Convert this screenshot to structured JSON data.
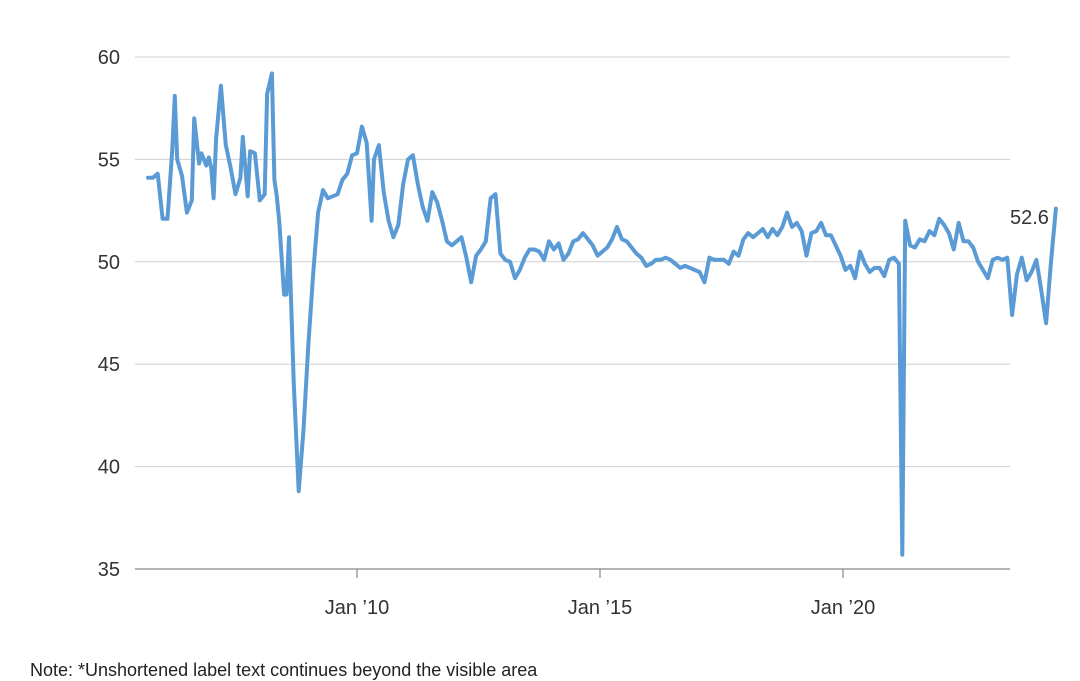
{
  "colors": {
    "line": "#5b9bd5",
    "grid": "#d0d0d0",
    "text": "#333333"
  },
  "note": "Note: *Unshortened label text continues beyond the visible area",
  "chart_data": {
    "type": "line",
    "title": "",
    "xlabel": "",
    "ylabel": "",
    "ylim": [
      35,
      60
    ],
    "xlim": [
      2005.5,
      2023.4
    ],
    "grid": "horizontal",
    "y_ticks": [
      35,
      40,
      45,
      50,
      55,
      60
    ],
    "y_tick_labels": [
      "35",
      "40",
      "45",
      "50",
      "55",
      "60"
    ],
    "x_ticks": [
      2010.0,
      2015.0,
      2020.0
    ],
    "x_tick_labels": [
      "Jan ’10",
      "Jan ’15",
      "Jan ’20"
    ],
    "end_label": "52.6",
    "series": [
      {
        "name": "",
        "color": "#5b9bd5",
        "points": [
          [
            2005.7,
            54.1
          ],
          [
            2005.8,
            54.1
          ],
          [
            2005.9,
            54.3
          ],
          [
            2006.0,
            52.1
          ],
          [
            2006.1,
            52.1
          ],
          [
            2006.2,
            55.5
          ],
          [
            2006.25,
            58.1
          ],
          [
            2006.3,
            55.0
          ],
          [
            2006.4,
            54.2
          ],
          [
            2006.5,
            52.4
          ],
          [
            2006.6,
            53.0
          ],
          [
            2006.65,
            57.0
          ],
          [
            2006.75,
            54.8
          ],
          [
            2006.8,
            55.3
          ],
          [
            2006.9,
            54.7
          ],
          [
            2006.95,
            55.1
          ],
          [
            2007.0,
            54.6
          ],
          [
            2007.05,
            53.1
          ],
          [
            2007.1,
            56.0
          ],
          [
            2007.2,
            58.6
          ],
          [
            2007.3,
            55.7
          ],
          [
            2007.4,
            54.6
          ],
          [
            2007.5,
            53.3
          ],
          [
            2007.6,
            54.1
          ],
          [
            2007.65,
            56.1
          ],
          [
            2007.75,
            53.2
          ],
          [
            2007.8,
            55.4
          ],
          [
            2007.9,
            55.3
          ],
          [
            2008.0,
            53.0
          ],
          [
            2008.1,
            53.3
          ],
          [
            2008.15,
            58.2
          ],
          [
            2008.25,
            59.2
          ],
          [
            2008.3,
            54.0
          ],
          [
            2008.35,
            53.2
          ],
          [
            2008.4,
            52.0
          ],
          [
            2008.5,
            48.4
          ],
          [
            2008.55,
            48.4
          ],
          [
            2008.6,
            51.2
          ],
          [
            2008.7,
            44.0
          ],
          [
            2008.8,
            38.8
          ],
          [
            2008.9,
            41.8
          ],
          [
            2009.0,
            46.0
          ],
          [
            2009.1,
            49.5
          ],
          [
            2009.2,
            52.4
          ],
          [
            2009.3,
            53.5
          ],
          [
            2009.4,
            53.1
          ],
          [
            2009.5,
            53.2
          ],
          [
            2009.6,
            53.3
          ],
          [
            2009.7,
            54.0
          ],
          [
            2009.8,
            54.3
          ],
          [
            2009.9,
            55.2
          ],
          [
            2010.0,
            55.3
          ],
          [
            2010.1,
            56.6
          ],
          [
            2010.2,
            55.8
          ],
          [
            2010.3,
            52.0
          ],
          [
            2010.35,
            55.0
          ],
          [
            2010.45,
            55.7
          ],
          [
            2010.55,
            53.4
          ],
          [
            2010.65,
            52.0
          ],
          [
            2010.75,
            51.2
          ],
          [
            2010.85,
            51.8
          ],
          [
            2010.95,
            53.8
          ],
          [
            2011.05,
            55.0
          ],
          [
            2011.15,
            55.2
          ],
          [
            2011.25,
            53.8
          ],
          [
            2011.35,
            52.7
          ],
          [
            2011.45,
            52.0
          ],
          [
            2011.55,
            53.4
          ],
          [
            2011.65,
            52.9
          ],
          [
            2011.75,
            52.0
          ],
          [
            2011.85,
            51.0
          ],
          [
            2011.95,
            50.8
          ],
          [
            2012.05,
            51.0
          ],
          [
            2012.15,
            51.2
          ],
          [
            2012.25,
            50.2
          ],
          [
            2012.35,
            49.0
          ],
          [
            2012.45,
            50.3
          ],
          [
            2012.55,
            50.6
          ],
          [
            2012.65,
            51.0
          ],
          [
            2012.75,
            53.1
          ],
          [
            2012.85,
            53.3
          ],
          [
            2012.95,
            50.4
          ],
          [
            2013.05,
            50.1
          ],
          [
            2013.15,
            50.0
          ],
          [
            2013.25,
            49.2
          ],
          [
            2013.35,
            49.6
          ],
          [
            2013.45,
            50.2
          ],
          [
            2013.55,
            50.6
          ],
          [
            2013.65,
            50.6
          ],
          [
            2013.75,
            50.5
          ],
          [
            2013.85,
            50.1
          ],
          [
            2013.95,
            51.0
          ],
          [
            2014.05,
            50.6
          ],
          [
            2014.15,
            50.9
          ],
          [
            2014.25,
            50.1
          ],
          [
            2014.35,
            50.4
          ],
          [
            2014.45,
            51.0
          ],
          [
            2014.55,
            51.1
          ],
          [
            2014.65,
            51.4
          ],
          [
            2014.75,
            51.1
          ],
          [
            2014.85,
            50.8
          ],
          [
            2014.95,
            50.3
          ],
          [
            2015.05,
            50.5
          ],
          [
            2015.15,
            50.7
          ],
          [
            2015.25,
            51.1
          ],
          [
            2015.35,
            51.7
          ],
          [
            2015.45,
            51.1
          ],
          [
            2015.55,
            51.0
          ],
          [
            2015.65,
            50.7
          ],
          [
            2015.75,
            50.4
          ],
          [
            2015.85,
            50.2
          ],
          [
            2015.95,
            49.8
          ],
          [
            2016.05,
            49.9
          ],
          [
            2016.15,
            50.1
          ],
          [
            2016.25,
            50.1
          ],
          [
            2016.35,
            50.2
          ],
          [
            2016.45,
            50.1
          ],
          [
            2016.55,
            49.9
          ],
          [
            2016.65,
            49.7
          ],
          [
            2016.75,
            49.8
          ],
          [
            2016.85,
            49.7
          ],
          [
            2016.95,
            49.6
          ],
          [
            2017.05,
            49.5
          ],
          [
            2017.15,
            49.0
          ],
          [
            2017.25,
            50.2
          ],
          [
            2017.35,
            50.1
          ],
          [
            2017.45,
            50.1
          ],
          [
            2017.55,
            50.1
          ],
          [
            2017.65,
            49.9
          ],
          [
            2017.75,
            50.5
          ],
          [
            2017.85,
            50.3
          ],
          [
            2017.95,
            51.1
          ],
          [
            2018.05,
            51.4
          ],
          [
            2018.15,
            51.2
          ],
          [
            2018.25,
            51.4
          ],
          [
            2018.35,
            51.6
          ],
          [
            2018.45,
            51.2
          ],
          [
            2018.55,
            51.6
          ],
          [
            2018.65,
            51.3
          ],
          [
            2018.75,
            51.7
          ],
          [
            2018.85,
            52.4
          ],
          [
            2018.95,
            51.7
          ],
          [
            2019.05,
            51.9
          ],
          [
            2019.15,
            51.5
          ],
          [
            2019.25,
            50.3
          ],
          [
            2019.35,
            51.4
          ],
          [
            2019.45,
            51.5
          ],
          [
            2019.55,
            51.9
          ],
          [
            2019.65,
            51.3
          ],
          [
            2019.75,
            51.3
          ],
          [
            2019.85,
            50.8
          ],
          [
            2019.95,
            50.3
          ],
          [
            2020.05,
            49.6
          ],
          [
            2020.15,
            49.8
          ],
          [
            2020.25,
            49.2
          ],
          [
            2020.35,
            50.5
          ],
          [
            2020.45,
            49.9
          ],
          [
            2020.55,
            49.5
          ],
          [
            2020.65,
            49.7
          ],
          [
            2020.75,
            49.7
          ],
          [
            2020.85,
            49.3
          ],
          [
            2020.95,
            50.1
          ],
          [
            2021.05,
            50.2
          ],
          [
            2021.15,
            49.9
          ],
          [
            2021.22,
            35.7
          ],
          [
            2021.28,
            52.0
          ],
          [
            2021.38,
            50.8
          ],
          [
            2021.48,
            50.7
          ],
          [
            2021.58,
            51.1
          ],
          [
            2021.68,
            51.0
          ],
          [
            2021.78,
            51.5
          ],
          [
            2021.88,
            51.3
          ],
          [
            2021.98,
            52.1
          ],
          [
            2022.08,
            51.8
          ],
          [
            2022.18,
            51.4
          ],
          [
            2022.28,
            50.6
          ],
          [
            2022.38,
            51.9
          ],
          [
            2022.48,
            51.0
          ],
          [
            2022.58,
            51.0
          ],
          [
            2022.68,
            50.7
          ],
          [
            2022.78,
            50.0
          ],
          [
            2022.88,
            49.6
          ],
          [
            2022.98,
            49.2
          ],
          [
            2023.08,
            50.1
          ],
          [
            2023.18,
            50.2
          ],
          [
            2023.28,
            50.1
          ],
          [
            2023.38,
            50.2
          ],
          [
            2023.48,
            47.4
          ],
          [
            2023.58,
            49.4
          ],
          [
            2023.68,
            50.2
          ],
          [
            2023.78,
            49.1
          ],
          [
            2023.88,
            49.5
          ],
          [
            2023.98,
            50.1
          ],
          [
            2024.08,
            48.6
          ],
          [
            2024.18,
            47.0
          ],
          [
            2024.28,
            50.0
          ],
          [
            2024.38,
            52.6
          ]
        ]
      }
    ]
  }
}
